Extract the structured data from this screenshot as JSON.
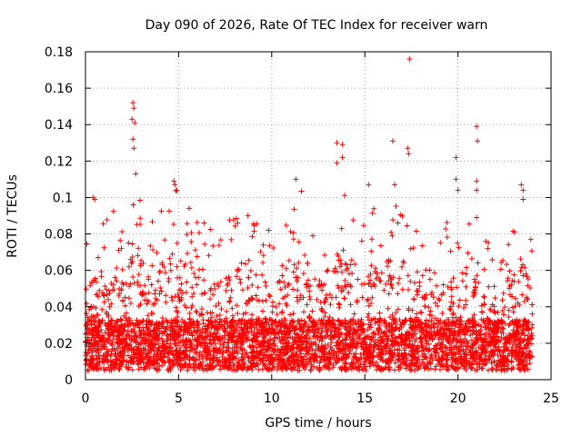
{
  "chart_data": {
    "type": "scatter",
    "title": "Day 090 of 2026, Rate Of TEC Index for receiver warn",
    "xlabel": "GPS time / hours",
    "ylabel": "ROTI / TECUs",
    "xlim": [
      0,
      25
    ],
    "ylim": [
      0,
      0.18
    ],
    "xticks": [
      0,
      5,
      10,
      15,
      20,
      25
    ],
    "xtick_labels": [
      "0",
      "5",
      "10",
      "15",
      "20",
      "25"
    ],
    "yticks": [
      0,
      0.02,
      0.04,
      0.06,
      0.08,
      0.1,
      0.12,
      0.14,
      0.16,
      0.18
    ],
    "ytick_labels": [
      "0",
      "0.02",
      "0.04",
      "0.06",
      "0.08",
      "0.1",
      "0.12",
      "0.14",
      "0.16",
      "0.18"
    ],
    "grid": true,
    "marker": "+",
    "series_color": "#ff0000",
    "sample_density_per_hour": 180,
    "notable_points": [
      {
        "x": 0.4,
        "y": 0.1
      },
      {
        "x": 0.5,
        "y": 0.099
      },
      {
        "x": 2.55,
        "y": 0.152
      },
      {
        "x": 2.6,
        "y": 0.149
      },
      {
        "x": 2.5,
        "y": 0.143
      },
      {
        "x": 2.65,
        "y": 0.141
      },
      {
        "x": 2.55,
        "y": 0.132
      },
      {
        "x": 2.6,
        "y": 0.127
      },
      {
        "x": 2.7,
        "y": 0.113
      },
      {
        "x": 4.8,
        "y": 0.107
      },
      {
        "x": 4.9,
        "y": 0.104
      },
      {
        "x": 11.3,
        "y": 0.11
      },
      {
        "x": 13.5,
        "y": 0.13
      },
      {
        "x": 13.8,
        "y": 0.129
      },
      {
        "x": 13.5,
        "y": 0.119
      },
      {
        "x": 13.8,
        "y": 0.122
      },
      {
        "x": 15.2,
        "y": 0.107
      },
      {
        "x": 16.5,
        "y": 0.131
      },
      {
        "x": 16.6,
        "y": 0.107
      },
      {
        "x": 17.3,
        "y": 0.127
      },
      {
        "x": 17.35,
        "y": 0.124
      },
      {
        "x": 17.4,
        "y": 0.176
      },
      {
        "x": 19.9,
        "y": 0.122
      },
      {
        "x": 19.9,
        "y": 0.11
      },
      {
        "x": 20.0,
        "y": 0.104
      },
      {
        "x": 21.0,
        "y": 0.139
      },
      {
        "x": 21.05,
        "y": 0.131
      },
      {
        "x": 21.0,
        "y": 0.109
      },
      {
        "x": 21.0,
        "y": 0.104
      },
      {
        "x": 21.0,
        "y": 0.089
      },
      {
        "x": 23.4,
        "y": 0.107
      },
      {
        "x": 23.5,
        "y": 0.104
      },
      {
        "x": 23.5,
        "y": 0.099
      }
    ],
    "activity_profile": [
      {
        "x": 0,
        "level": 0.05
      },
      {
        "x": 1,
        "level": 0.06
      },
      {
        "x": 2,
        "level": 0.055
      },
      {
        "x": 2.6,
        "level": 0.09
      },
      {
        "x": 3.5,
        "level": 0.05
      },
      {
        "x": 4.8,
        "level": 0.08
      },
      {
        "x": 6,
        "level": 0.055
      },
      {
        "x": 7,
        "level": 0.05
      },
      {
        "x": 8.5,
        "level": 0.065
      },
      {
        "x": 10,
        "level": 0.05
      },
      {
        "x": 11.5,
        "level": 0.07
      },
      {
        "x": 12.5,
        "level": 0.055
      },
      {
        "x": 13.7,
        "level": 0.075
      },
      {
        "x": 15,
        "level": 0.055
      },
      {
        "x": 16.5,
        "level": 0.07
      },
      {
        "x": 17.5,
        "level": 0.06
      },
      {
        "x": 19,
        "level": 0.05
      },
      {
        "x": 20.8,
        "level": 0.06
      },
      {
        "x": 22,
        "level": 0.045
      },
      {
        "x": 23.5,
        "level": 0.065
      },
      {
        "x": 24,
        "level": 0.045
      }
    ],
    "data_x_range": [
      0,
      24
    ]
  }
}
